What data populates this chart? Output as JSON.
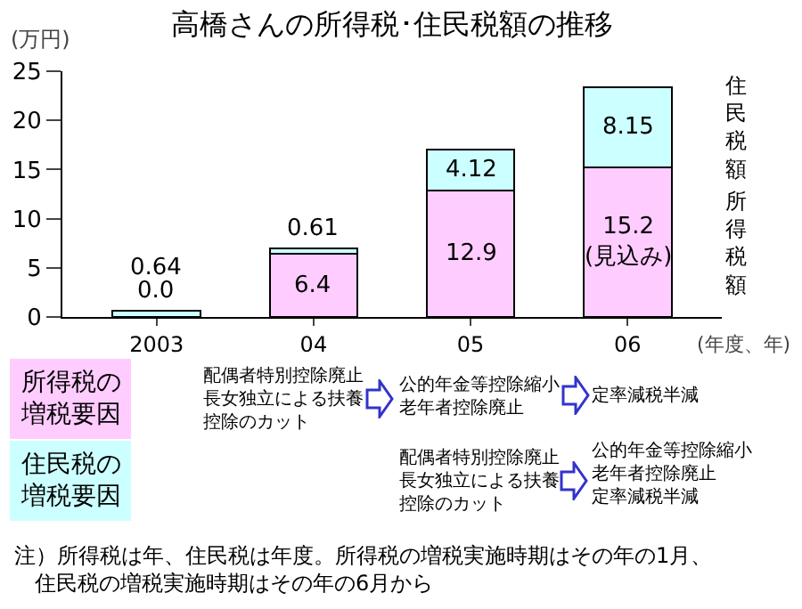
{
  "chart_data": {
    "type": "bar",
    "stacked": true,
    "title": "高橋さんの所得税･住民税額の推移",
    "ylabel": "(万円)",
    "xlabel": "(年度、年)",
    "categories": [
      "2003",
      "04",
      "05",
      "06"
    ],
    "series": [
      {
        "name": "所得税額",
        "color": "#ffccff",
        "values": [
          0.0,
          6.4,
          12.9,
          15.2
        ],
        "value_labels": [
          "0.0",
          "6.4",
          "12.9",
          "15.2\n(見込み)"
        ]
      },
      {
        "name": "住民税額",
        "color": "#ccffff",
        "values": [
          0.64,
          0.61,
          4.12,
          8.15
        ],
        "value_labels": [
          "0.64",
          "0.61",
          "4.12",
          "8.15"
        ]
      }
    ],
    "ylim": [
      0,
      25
    ],
    "yticks": [
      0,
      5,
      10,
      15,
      20,
      25
    ],
    "grid": false,
    "legend": false,
    "annotations": [
      "所得税の増税要因",
      "配偶者特別控除廃止長女独立による扶養控除のカット",
      "公的年金等控除縮小老年者控除廃止",
      "定率減税半減",
      "住民税の増税要因",
      "配偶者特別控除廃止長女独立による扶養控除のカット",
      "公的年金等控除縮小老年者控除廃止定率減税半減",
      "注）所得税は年、住民税は年度。所得税の増税実施時期はその年の1月、住民税の増税実施時期はその年の6月から"
    ]
  }
}
